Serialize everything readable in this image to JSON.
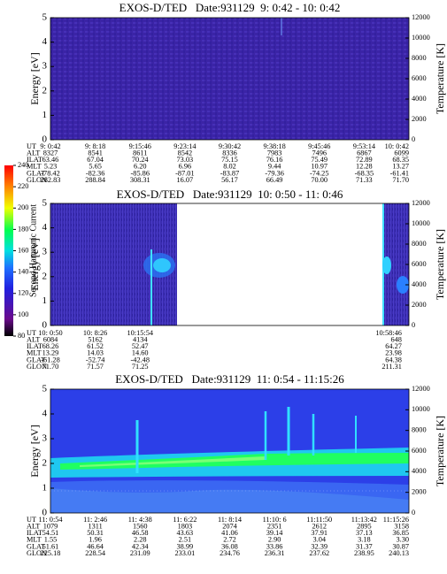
{
  "chart_data": [
    {
      "type": "spectrogram",
      "title": "EXOS-D/TED   Date:931129  9: 0:42 - 10: 0:42",
      "ylabel": "Energy [eV]",
      "y2label": "Temperature [K]",
      "ylim": [
        0,
        5
      ],
      "yticks": [
        0,
        1,
        2,
        3,
        4,
        5
      ],
      "y2lim": [
        0,
        12000
      ],
      "y2ticks": [
        0,
        2000,
        4000,
        6000,
        8000,
        10000,
        12000
      ],
      "ephemeris": {
        "labels": [
          "UT",
          "ALT",
          "ILAT",
          "MLT",
          "GLAT",
          "GLON"
        ],
        "rows": [
          [
            "9: 0:42",
            "9: 8:18",
            "9:15:46",
            "9:23:14",
            "9:30:42",
            "9:38:18",
            "9:45:46",
            "9:53:14",
            "10: 0:42"
          ],
          [
            "8327",
            "8541",
            "8611",
            "8542",
            "8336",
            "7983",
            "7496",
            "6867",
            "6099"
          ],
          [
            "63.46",
            "67.04",
            "70.24",
            "73.03",
            "75.15",
            "76.16",
            "75.49",
            "72.89",
            "68.35"
          ],
          [
            "5.23",
            "5.65",
            "6.20",
            "6.96",
            "8.02",
            "9.44",
            "10.97",
            "12.28",
            "13.27"
          ],
          [
            "-78.42",
            "-82.36",
            "-85.86",
            "-87.01",
            "-83.87",
            "-79.36",
            "-74.25",
            "-68.35",
            "-61.41"
          ],
          [
            "282.83",
            "288.84",
            "308.31",
            "16.07",
            "56.17",
            "66.49",
            "70.00",
            "71.33",
            "71.70"
          ]
        ]
      }
    },
    {
      "type": "spectrogram",
      "title": "EXOS-D/TED   Date:931129  10: 0:50 - 11: 0:46",
      "ylabel": "Energy [eV]",
      "y2label": "Temperature [K]",
      "ylim": [
        0,
        5
      ],
      "yticks": [
        0,
        1,
        2,
        3,
        4,
        5
      ],
      "y2lim": [
        0,
        12000
      ],
      "y2ticks": [
        0,
        2000,
        4000,
        6000,
        8000,
        10000,
        12000
      ],
      "colorbar": {
        "label": "Second Harmonic Current",
        "lim": [
          80,
          240
        ],
        "ticks": [
          80,
          100,
          120,
          140,
          160,
          180,
          200,
          220,
          240
        ]
      },
      "ephemeris": {
        "labels": [
          "UT",
          "ALT",
          "ILAT",
          "MLT",
          "GLAT",
          "GLON"
        ],
        "rows": [
          [
            "10: 0:50",
            "10: 8:26",
            "10:15:54",
            "10:58:46"
          ],
          [
            "6084",
            "5162",
            "4134",
            "648"
          ],
          [
            "68.26",
            "61.52",
            "52.47",
            "64.27"
          ],
          [
            "13.29",
            "14.03",
            "14.60",
            "23.98"
          ],
          [
            "-61.28",
            "-52.74",
            "-42.48",
            "64.38"
          ],
          [
            "71.70",
            "71.57",
            "71.25",
            "211.31"
          ]
        ]
      }
    },
    {
      "type": "spectrogram",
      "title": "EXOS-D/TED   Date:931129  11: 0:54 - 11:15:26",
      "ylabel": "Energy [eV]",
      "y2label": "Temperature [K]",
      "ylim": [
        0,
        5
      ],
      "yticks": [
        0,
        1,
        2,
        3,
        4,
        5
      ],
      "y2lim": [
        0,
        12000
      ],
      "y2ticks": [
        0,
        2000,
        4000,
        6000,
        8000,
        10000,
        12000
      ],
      "ephemeris": {
        "labels": [
          "UT",
          "ALT",
          "ILAT",
          "MLT",
          "GLAT",
          "GLON"
        ],
        "rows": [
          [
            "11: 0:54",
            "11: 2:46",
            "11: 4:38",
            "11: 6:22",
            "11: 8:14",
            "11:10: 6",
            "11:11:50",
            "11:13:42",
            "11:15:26"
          ],
          [
            "1079",
            "1311",
            "1560",
            "1803",
            "2074",
            "2351",
            "2612",
            "2895",
            "3158"
          ],
          [
            "54.51",
            "50.31",
            "46.58",
            "43.63",
            "41.06",
            "39.14",
            "37.91",
            "37.13",
            "36.85"
          ],
          [
            "1.55",
            "1.96",
            "2.28",
            "2.51",
            "2.72",
            "2.90",
            "3.04",
            "3.18",
            "3.30"
          ],
          [
            "51.61",
            "46.64",
            "42.34",
            "38.99",
            "36.08",
            "33.86",
            "32.39",
            "31.37",
            "30.87"
          ],
          [
            "225.18",
            "228.54",
            "231.09",
            "233.01",
            "234.76",
            "236.31",
            "237.62",
            "238.95",
            "240.13"
          ]
        ]
      }
    }
  ]
}
